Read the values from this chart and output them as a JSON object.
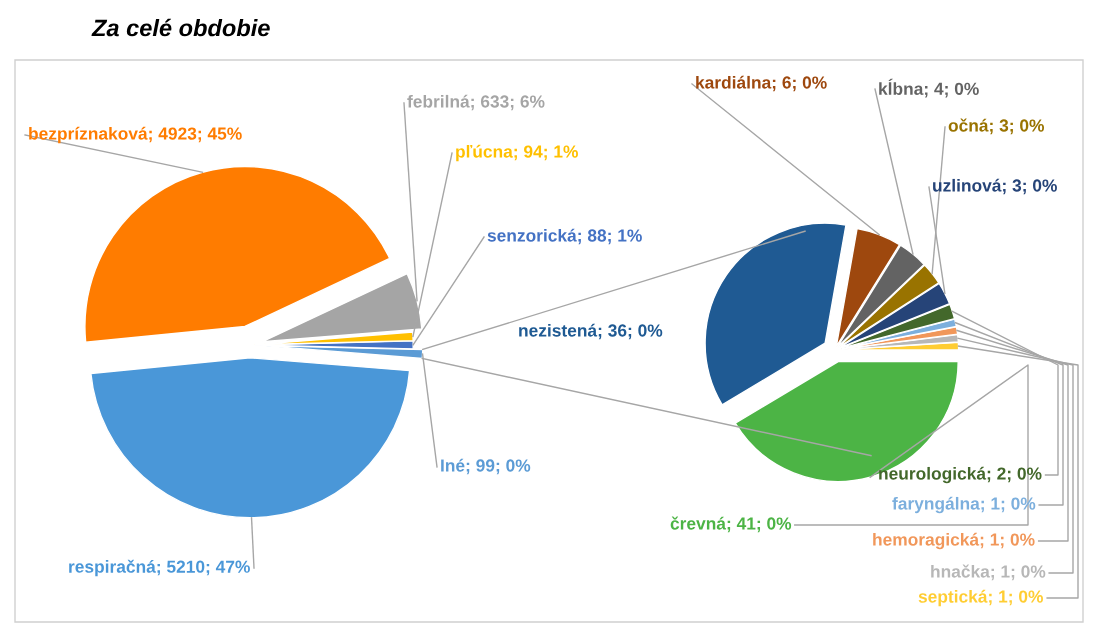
{
  "chart_data": [
    {
      "type": "pie",
      "title": "Za celé obdobie",
      "categories": [
        "Iné",
        "senzorická",
        "pľúcna",
        "febrilná",
        "bezpríznaková",
        "respiračná"
      ],
      "values": [
        99,
        88,
        94,
        633,
        4923,
        5210
      ],
      "colors": [
        "#5b9bd5",
        "#4472c4",
        "#ffc000",
        "#a5a5a5",
        "#ff7c00",
        "#4a97d8"
      ],
      "value_labels": [
        "99; 0%",
        "88; 1%",
        "94; 1%",
        "633; 6%",
        "4923; 45%",
        "5210; 47%"
      ]
    },
    {
      "type": "pie",
      "categories": [
        "septická",
        "hnačka",
        "hemoragická",
        "faryngálna",
        "neurologická",
        "uzlinová",
        "očná",
        "kĺbna",
        "kardiálna",
        "nezistená",
        "črevná"
      ],
      "values": [
        1,
        1,
        1,
        1,
        2,
        3,
        3,
        4,
        6,
        36,
        41
      ],
      "colors": [
        "#ffcd33",
        "#b7b7b7",
        "#f1975a",
        "#7cafdd",
        "#43682b",
        "#264478",
        "#997300",
        "#636363",
        "#9e480e",
        "#1f5a93",
        "#4cb445"
      ],
      "value_labels": [
        "1; 0%",
        "1; 0%",
        "1; 0%",
        "1; 0%",
        "2; 0%",
        "3; 0%",
        "3; 0%",
        "4; 0%",
        "6; 0%",
        "36; 0%",
        "41; 0%"
      ]
    }
  ]
}
